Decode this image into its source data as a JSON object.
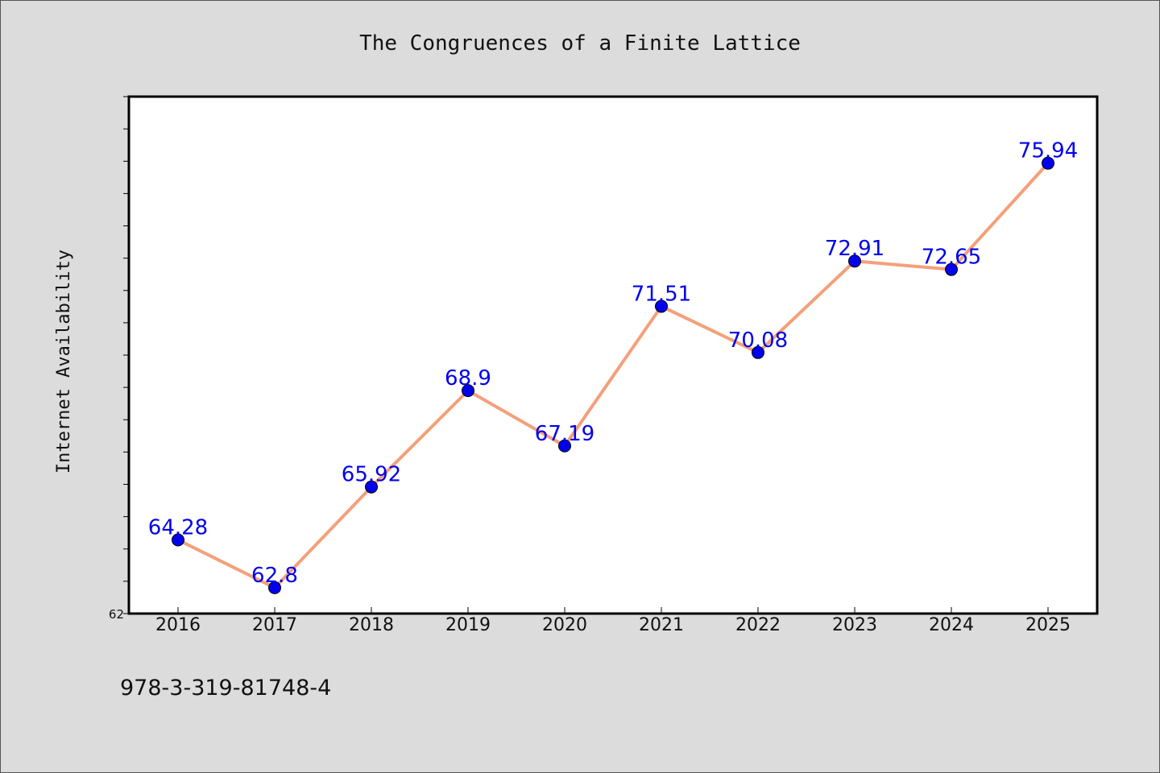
{
  "chart_data": {
    "type": "line",
    "title": "The Congruences of a Finite Lattice",
    "xlabel": "",
    "ylabel": "Internet Availability",
    "categories": [
      "2016",
      "2017",
      "2018",
      "2019",
      "2020",
      "2021",
      "2022",
      "2023",
      "2024",
      "2025"
    ],
    "values": [
      64.28,
      62.8,
      65.92,
      68.9,
      67.19,
      71.51,
      70.08,
      72.91,
      72.65,
      75.94
    ],
    "data_labels": [
      "64.28",
      "62.8",
      "65.92",
      "68.9",
      "67.19",
      "71.51",
      "70.08",
      "72.91",
      "72.65",
      "75.94"
    ],
    "ylim": [
      62,
      78
    ],
    "ytick_labels": [
      "62"
    ],
    "grid": false,
    "legend": "none",
    "colors": {
      "line": "#f4a07a",
      "marker": "#0000ee",
      "data_label": "#0000ee",
      "background": "#dcdcdc",
      "plot_background": "#ffffff"
    }
  },
  "footer": {
    "isbn": "978-3-319-81748-4"
  }
}
